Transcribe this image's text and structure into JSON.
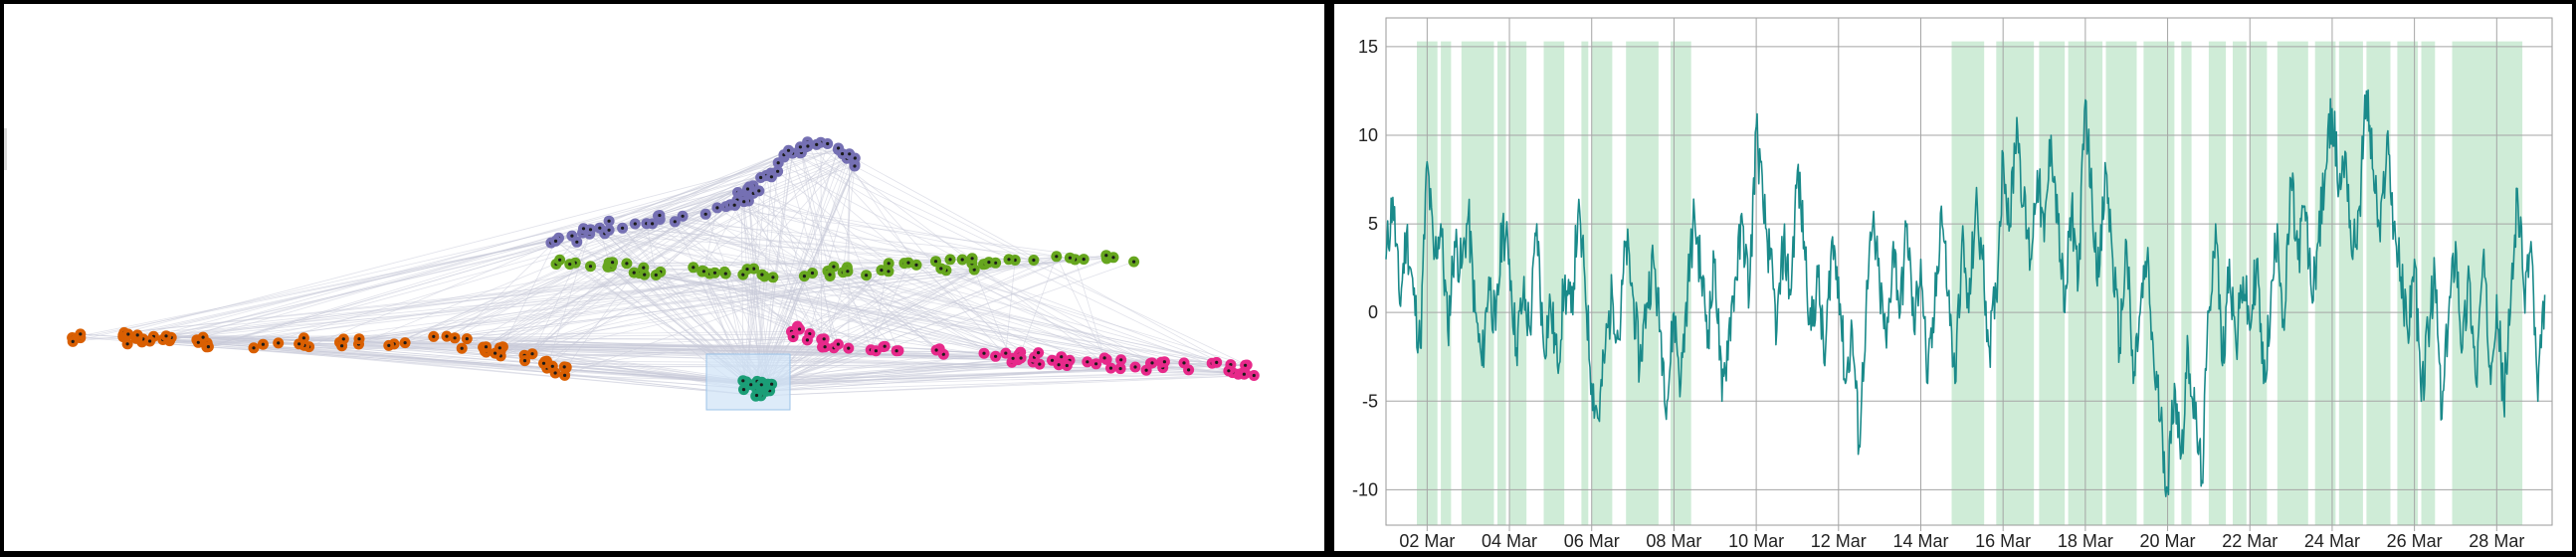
{
  "network": {
    "edge_color": "#c8cbd8",
    "node_outline": "#1a1a1a",
    "selection_fill": "#cfe3f7",
    "clusters": [
      {
        "name": "purple",
        "color": "#7570b3"
      },
      {
        "name": "green",
        "color": "#66a61e"
      },
      {
        "name": "orange",
        "color": "#d95f02"
      },
      {
        "name": "magenta",
        "color": "#e7298a"
      },
      {
        "name": "teal",
        "color": "#1b9e77"
      }
    ]
  },
  "chart_data": {
    "type": "line",
    "title": "",
    "xlabel": "",
    "ylabel": "",
    "x_start": "2015-03-01",
    "x_end": "2015-03-29",
    "ylim": [
      -12,
      15.5
    ],
    "yticks": [
      15,
      10,
      5,
      0,
      -5,
      -10
    ],
    "ytick_labels": [
      "15",
      "10",
      "5",
      "0",
      "-5",
      "-10"
    ],
    "xticks": [
      "02 Mar",
      "04 Mar",
      "06 Mar",
      "08 Mar",
      "10 Mar",
      "12 Mar",
      "14 Mar",
      "16 Mar",
      "18 Mar",
      "20 Mar",
      "22 Mar",
      "24 Mar",
      "26 Mar",
      "28 Mar"
    ],
    "grid": true,
    "line_color": "#1a8a8a",
    "band_color": "#bfe5c9",
    "highlight_bands": [
      [
        "2015-03-01 18:00",
        "2015-03-02 06:00"
      ],
      [
        "2015-03-02 08:00",
        "2015-03-02 14:00"
      ],
      [
        "2015-03-02 20:00",
        "2015-03-03 15:00"
      ],
      [
        "2015-03-03 17:00",
        "2015-03-03 22:00"
      ],
      [
        "2015-03-04 00:00",
        "2015-03-04 10:00"
      ],
      [
        "2015-03-04 20:00",
        "2015-03-05 08:00"
      ],
      [
        "2015-03-05 18:00",
        "2015-03-05 22:00"
      ],
      [
        "2015-03-06 00:00",
        "2015-03-06 12:00"
      ],
      [
        "2015-03-06 20:00",
        "2015-03-07 15:00"
      ],
      [
        "2015-03-07 22:00",
        "2015-03-08 10:00"
      ],
      [
        "2015-03-14 18:00",
        "2015-03-15 13:00"
      ],
      [
        "2015-03-15 20:00",
        "2015-03-16 18:00"
      ],
      [
        "2015-03-16 21:00",
        "2015-03-17 12:00"
      ],
      [
        "2015-03-17 14:00",
        "2015-03-18 10:00"
      ],
      [
        "2015-03-18 12:00",
        "2015-03-19 06:00"
      ],
      [
        "2015-03-19 10:00",
        "2015-03-20 04:00"
      ],
      [
        "2015-03-20 08:00",
        "2015-03-20 14:00"
      ],
      [
        "2015-03-21 00:00",
        "2015-03-21 10:00"
      ],
      [
        "2015-03-21 14:00",
        "2015-03-21 22:00"
      ],
      [
        "2015-03-22 00:00",
        "2015-03-22 10:00"
      ],
      [
        "2015-03-22 16:00",
        "2015-03-23 10:00"
      ],
      [
        "2015-03-23 14:00",
        "2015-03-24 02:00"
      ],
      [
        "2015-03-24 04:00",
        "2015-03-24 18:00"
      ],
      [
        "2015-03-24 20:00",
        "2015-03-25 10:00"
      ],
      [
        "2015-03-25 14:00",
        "2015-03-26 02:00"
      ],
      [
        "2015-03-26 04:00",
        "2015-03-26 12:00"
      ],
      [
        "2015-03-26 22:00",
        "2015-03-28 15:00"
      ]
    ],
    "series": [
      {
        "values": [
          [
            "2015-03-01 00:00",
            3.0
          ],
          [
            "2015-03-01 04:00",
            6.5
          ],
          [
            "2015-03-01 08:00",
            0.5
          ],
          [
            "2015-03-01 12:00",
            4.5
          ],
          [
            "2015-03-01 16:00",
            1.0
          ],
          [
            "2015-03-01 20:00",
            -2.0
          ],
          [
            "2015-03-02 00:00",
            8.5
          ],
          [
            "2015-03-02 04:00",
            3.0
          ],
          [
            "2015-03-02 08:00",
            5.0
          ],
          [
            "2015-03-02 12:00",
            -1.0
          ],
          [
            "2015-03-02 16:00",
            4.0
          ],
          [
            "2015-03-02 20:00",
            2.5
          ],
          [
            "2015-03-03 00:00",
            5.5
          ],
          [
            "2015-03-03 04:00",
            0.0
          ],
          [
            "2015-03-03 08:00",
            -3.0
          ],
          [
            "2015-03-03 12:00",
            2.0
          ],
          [
            "2015-03-03 16:00",
            -1.0
          ],
          [
            "2015-03-03 20:00",
            5.0
          ],
          [
            "2015-03-04 00:00",
            3.0
          ],
          [
            "2015-03-04 04:00",
            -2.0
          ],
          [
            "2015-03-04 08:00",
            1.0
          ],
          [
            "2015-03-04 12:00",
            -1.0
          ],
          [
            "2015-03-04 16:00",
            5.0
          ],
          [
            "2015-03-04 20:00",
            -2.0
          ],
          [
            "2015-03-05 00:00",
            0.5
          ],
          [
            "2015-03-05 04:00",
            -3.0
          ],
          [
            "2015-03-05 08:00",
            1.5
          ],
          [
            "2015-03-05 12:00",
            0.0
          ],
          [
            "2015-03-05 16:00",
            5.5
          ],
          [
            "2015-03-05 20:00",
            2.0
          ],
          [
            "2015-03-06 00:00",
            -4.0
          ],
          [
            "2015-03-06 04:00",
            -6.0
          ],
          [
            "2015-03-06 08:00",
            -2.0
          ],
          [
            "2015-03-06 12:00",
            1.0
          ],
          [
            "2015-03-06 16:00",
            -1.5
          ],
          [
            "2015-03-06 20:00",
            4.0
          ],
          [
            "2015-03-07 00:00",
            1.0
          ],
          [
            "2015-03-07 04:00",
            -3.0
          ],
          [
            "2015-03-07 08:00",
            0.5
          ],
          [
            "2015-03-07 12:00",
            3.0
          ],
          [
            "2015-03-07 16:00",
            -1.0
          ],
          [
            "2015-03-07 20:00",
            -5.0
          ],
          [
            "2015-03-08 00:00",
            0.0
          ],
          [
            "2015-03-08 04:00",
            -4.0
          ],
          [
            "2015-03-08 08:00",
            1.5
          ],
          [
            "2015-03-08 12:00",
            5.5
          ],
          [
            "2015-03-08 16:00",
            2.0
          ],
          [
            "2015-03-08 20:00",
            -1.0
          ],
          [
            "2015-03-09 00:00",
            3.0
          ],
          [
            "2015-03-09 04:00",
            -5.0
          ],
          [
            "2015-03-09 08:00",
            -1.0
          ],
          [
            "2015-03-09 12:00",
            2.0
          ],
          [
            "2015-03-09 16:00",
            5.0
          ],
          [
            "2015-03-09 20:00",
            1.0
          ],
          [
            "2015-03-10 00:00",
            10.5
          ],
          [
            "2015-03-10 04:00",
            6.0
          ],
          [
            "2015-03-10 08:00",
            3.0
          ],
          [
            "2015-03-10 12:00",
            -1.0
          ],
          [
            "2015-03-10 16:00",
            4.0
          ],
          [
            "2015-03-10 20:00",
            1.0
          ],
          [
            "2015-03-11 00:00",
            8.0
          ],
          [
            "2015-03-11 04:00",
            4.0
          ],
          [
            "2015-03-11 08:00",
            -1.0
          ],
          [
            "2015-03-11 12:00",
            2.0
          ],
          [
            "2015-03-11 16:00",
            -3.0
          ],
          [
            "2015-03-11 20:00",
            4.0
          ],
          [
            "2015-03-12 00:00",
            2.0
          ],
          [
            "2015-03-12 04:00",
            -4.0
          ],
          [
            "2015-03-12 08:00",
            -1.0
          ],
          [
            "2015-03-12 12:00",
            -7.5
          ],
          [
            "2015-03-12 16:00",
            0.0
          ],
          [
            "2015-03-12 20:00",
            5.0
          ],
          [
            "2015-03-13 00:00",
            1.5
          ],
          [
            "2015-03-13 04:00",
            -2.0
          ],
          [
            "2015-03-13 08:00",
            4.0
          ],
          [
            "2015-03-13 12:00",
            0.0
          ],
          [
            "2015-03-13 16:00",
            5.0
          ],
          [
            "2015-03-13 20:00",
            -1.0
          ],
          [
            "2015-03-14 00:00",
            3.0
          ],
          [
            "2015-03-14 04:00",
            -4.0
          ],
          [
            "2015-03-14 08:00",
            0.0
          ],
          [
            "2015-03-14 12:00",
            6.0
          ],
          [
            "2015-03-14 16:00",
            1.0
          ],
          [
            "2015-03-14 20:00",
            -4.0
          ],
          [
            "2015-03-15 00:00",
            4.0
          ],
          [
            "2015-03-15 04:00",
            0.0
          ],
          [
            "2015-03-15 08:00",
            6.0
          ],
          [
            "2015-03-15 12:00",
            3.0
          ],
          [
            "2015-03-15 16:00",
            -2.0
          ],
          [
            "2015-03-15 20:00",
            1.0
          ],
          [
            "2015-03-16 00:00",
            9.0
          ],
          [
            "2015-03-16 04:00",
            5.0
          ],
          [
            "2015-03-16 08:00",
            11.0
          ],
          [
            "2015-03-16 12:00",
            6.0
          ],
          [
            "2015-03-16 16:00",
            3.0
          ],
          [
            "2015-03-16 20:00",
            8.0
          ],
          [
            "2015-03-17 00:00",
            4.0
          ],
          [
            "2015-03-17 04:00",
            10.0
          ],
          [
            "2015-03-17 08:00",
            5.0
          ],
          [
            "2015-03-17 12:00",
            0.0
          ],
          [
            "2015-03-17 16:00",
            6.0
          ],
          [
            "2015-03-17 20:00",
            2.0
          ],
          [
            "2015-03-18 00:00",
            12.0
          ],
          [
            "2015-03-18 04:00",
            6.0
          ],
          [
            "2015-03-18 08:00",
            2.0
          ],
          [
            "2015-03-18 12:00",
            8.0
          ],
          [
            "2015-03-18 16:00",
            3.0
          ],
          [
            "2015-03-18 20:00",
            -2.0
          ],
          [
            "2015-03-19 00:00",
            4.0
          ],
          [
            "2015-03-19 04:00",
            -4.0
          ],
          [
            "2015-03-19 08:00",
            0.0
          ],
          [
            "2015-03-19 12:00",
            3.0
          ],
          [
            "2015-03-19 16:00",
            -3.0
          ],
          [
            "2015-03-19 20:00",
            -6.0
          ],
          [
            "2015-03-20 00:00",
            -10.0
          ],
          [
            "2015-03-20 04:00",
            -4.0
          ],
          [
            "2015-03-20 08:00",
            -8.0
          ],
          [
            "2015-03-20 12:00",
            -2.0
          ],
          [
            "2015-03-20 16:00",
            -6.0
          ],
          [
            "2015-03-20 20:00",
            -9.5
          ],
          [
            "2015-03-21 00:00",
            0.0
          ],
          [
            "2015-03-21 04:00",
            5.0
          ],
          [
            "2015-03-21 08:00",
            -3.0
          ],
          [
            "2015-03-21 12:00",
            3.0
          ],
          [
            "2015-03-21 16:00",
            -2.0
          ],
          [
            "2015-03-21 20:00",
            2.0
          ],
          [
            "2015-03-22 00:00",
            -1.0
          ],
          [
            "2015-03-22 04:00",
            3.0
          ],
          [
            "2015-03-22 08:00",
            -4.0
          ],
          [
            "2015-03-22 12:00",
            0.0
          ],
          [
            "2015-03-22 16:00",
            5.0
          ],
          [
            "2015-03-22 20:00",
            -1.0
          ],
          [
            "2015-03-23 00:00",
            7.5
          ],
          [
            "2015-03-23 04:00",
            3.0
          ],
          [
            "2015-03-23 08:00",
            6.0
          ],
          [
            "2015-03-23 12:00",
            1.0
          ],
          [
            "2015-03-23 16:00",
            4.0
          ],
          [
            "2015-03-23 20:00",
            8.0
          ],
          [
            "2015-03-24 00:00",
            11.5
          ],
          [
            "2015-03-24 04:00",
            7.0
          ],
          [
            "2015-03-24 08:00",
            9.0
          ],
          [
            "2015-03-24 12:00",
            3.0
          ],
          [
            "2015-03-24 16:00",
            6.0
          ],
          [
            "2015-03-24 20:00",
            12.5
          ],
          [
            "2015-03-25 00:00",
            8.0
          ],
          [
            "2015-03-25 04:00",
            4.0
          ],
          [
            "2015-03-25 08:00",
            10.0
          ],
          [
            "2015-03-25 12:00",
            5.0
          ],
          [
            "2015-03-25 16:00",
            2.0
          ],
          [
            "2015-03-25 20:00",
            -1.0
          ],
          [
            "2015-03-26 00:00",
            3.0
          ],
          [
            "2015-03-26 04:00",
            -5.0
          ],
          [
            "2015-03-26 08:00",
            -1.0
          ],
          [
            "2015-03-26 12:00",
            2.0
          ],
          [
            "2015-03-26 16:00",
            -6.0
          ],
          [
            "2015-03-26 20:00",
            0.0
          ],
          [
            "2015-03-27 00:00",
            4.0
          ],
          [
            "2015-03-27 04:00",
            -2.0
          ],
          [
            "2015-03-27 08:00",
            2.0
          ],
          [
            "2015-03-27 12:00",
            -4.0
          ],
          [
            "2015-03-27 16:00",
            3.0
          ],
          [
            "2015-03-27 20:00",
            -3.0
          ],
          [
            "2015-03-28 00:00",
            1.0
          ],
          [
            "2015-03-28 04:00",
            -5.0
          ],
          [
            "2015-03-28 08:00",
            0.0
          ],
          [
            "2015-03-28 12:00",
            7.0
          ],
          [
            "2015-03-28 16:00",
            1.0
          ],
          [
            "2015-03-28 20:00",
            4.0
          ],
          [
            "2015-03-29 00:00",
            -5.0
          ],
          [
            "2015-03-29 04:00",
            1.0
          ]
        ]
      }
    ]
  }
}
